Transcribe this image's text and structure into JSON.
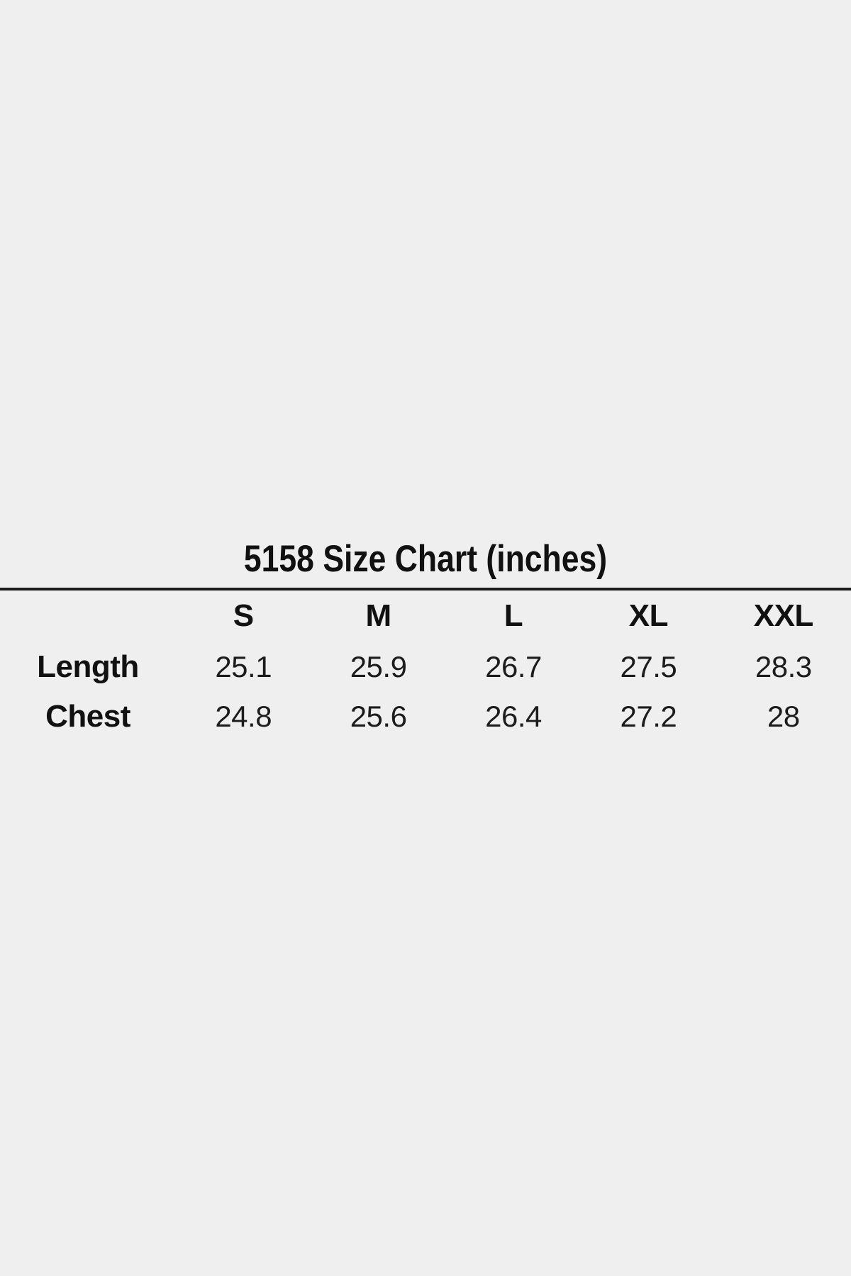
{
  "page": {
    "background": "#efefef",
    "rule_color": "#1a1a1a",
    "text_color": "#111111"
  },
  "chart_data": {
    "type": "table",
    "title": "5158 Size Chart (inches)",
    "unit": "inches",
    "columns": [
      "S",
      "M",
      "L",
      "XL",
      "XXL"
    ],
    "rows": [
      {
        "label": "Length",
        "values": [
          "25.1",
          "25.9",
          "26.7",
          "27.5",
          "28.3"
        ]
      },
      {
        "label": "Chest",
        "values": [
          "24.8",
          "25.6",
          "26.4",
          "27.2",
          "28"
        ]
      }
    ]
  }
}
